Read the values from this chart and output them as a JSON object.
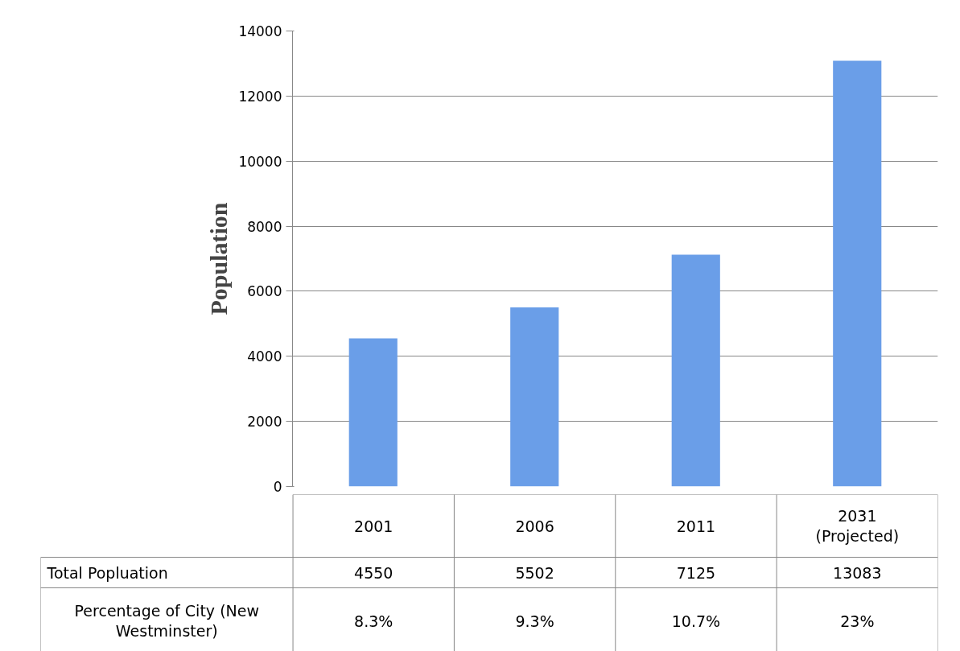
{
  "chart_data": {
    "type": "bar",
    "ylabel": "Population",
    "categories": [
      "2001",
      "2006",
      "2011",
      "2031\n(Projected)"
    ],
    "series": [
      {
        "name": "Total Popluation",
        "color": "#6a9ee8",
        "values": [
          4550,
          5502,
          7125,
          13083
        ]
      }
    ],
    "data_labels": true,
    "annotations": [
      "Percentage of City (New\nWestminster)",
      "8.3%",
      "9.3%",
      "10.7%",
      "23%"
    ],
    "ylim": [
      0,
      14000
    ],
    "yticks": [
      0,
      2000,
      4000,
      6000,
      8000,
      10000,
      12000,
      14000
    ],
    "grid": "y",
    "tick_labels": "y"
  }
}
